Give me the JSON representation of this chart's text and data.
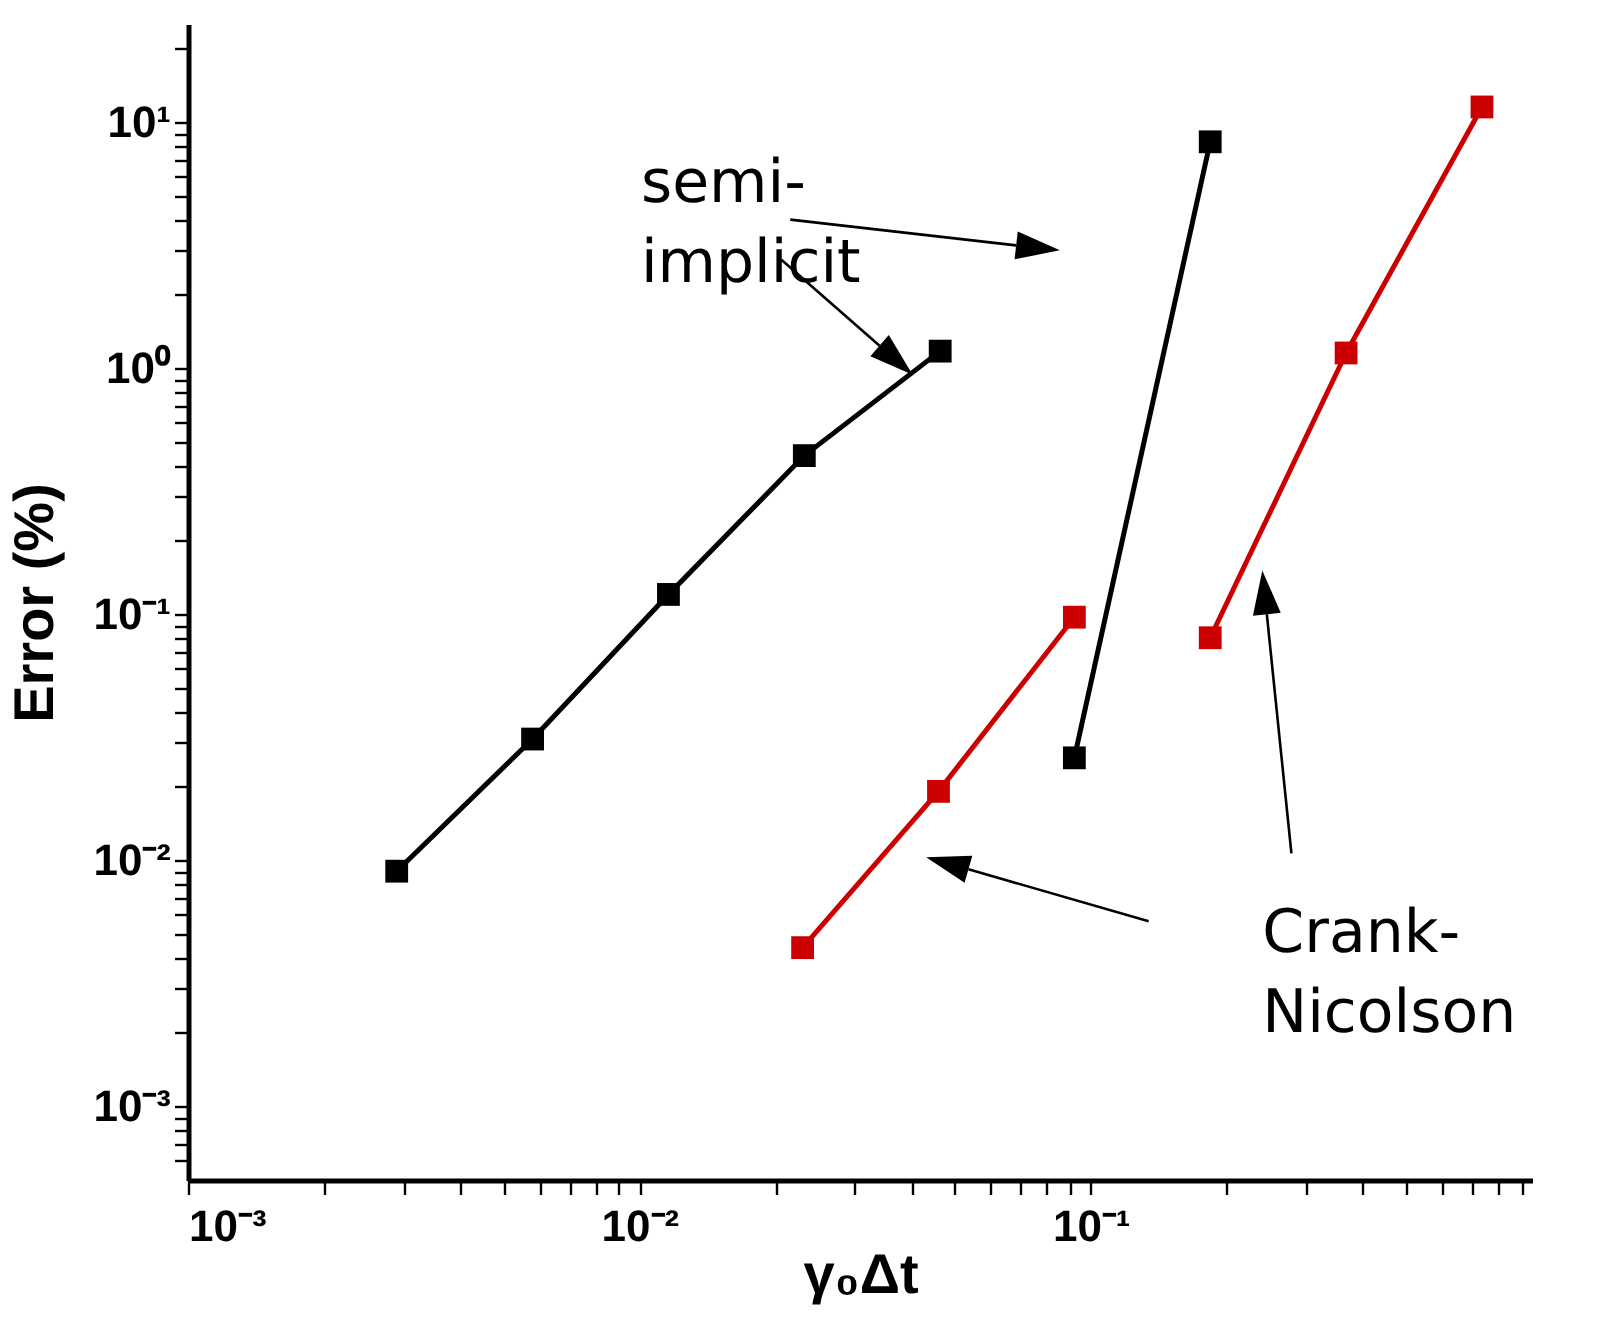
{
  "chart_data": {
    "type": "line",
    "xlabel": "γ₀Δt",
    "ylabel": "Error (%)",
    "log": "xy",
    "grid": false,
    "legend": false,
    "marker": "square",
    "line_style": "solid",
    "xlim": [
      0.001,
      0.95
    ],
    "ylim": [
      0.0005,
      25
    ],
    "xticks": [
      {
        "value": 0.001,
        "label": "10⁻³"
      },
      {
        "value": 0.002,
        "label": null
      },
      {
        "value": 0.003,
        "label": null
      },
      {
        "value": 0.004,
        "label": null
      },
      {
        "value": 0.005,
        "label": null
      },
      {
        "value": 0.006,
        "label": null
      },
      {
        "value": 0.007,
        "label": null
      },
      {
        "value": 0.008,
        "label": null
      },
      {
        "value": 0.009,
        "label": null
      },
      {
        "value": 0.01,
        "label": "10⁻²"
      },
      {
        "value": 0.02,
        "label": null
      },
      {
        "value": 0.03,
        "label": null
      },
      {
        "value": 0.04,
        "label": null
      },
      {
        "value": 0.05,
        "label": null
      },
      {
        "value": 0.06,
        "label": null
      },
      {
        "value": 0.07,
        "label": null
      },
      {
        "value": 0.08,
        "label": null
      },
      {
        "value": 0.09,
        "label": null
      },
      {
        "value": 0.1,
        "label": "10⁻¹"
      },
      {
        "value": 0.2,
        "label": null
      },
      {
        "value": 0.3,
        "label": null
      },
      {
        "value": 0.4,
        "label": null
      },
      {
        "value": 0.5,
        "label": null
      },
      {
        "value": 0.6,
        "label": null
      },
      {
        "value": 0.7,
        "label": null
      },
      {
        "value": 0.8,
        "label": null
      },
      {
        "value": 0.9,
        "label": null
      }
    ],
    "yticks": [
      {
        "value": 0.0006,
        "label": null
      },
      {
        "value": 0.0007,
        "label": null
      },
      {
        "value": 0.0008,
        "label": null
      },
      {
        "value": 0.0009,
        "label": null
      },
      {
        "value": 0.001,
        "label": "10⁻³"
      },
      {
        "value": 0.002,
        "label": null
      },
      {
        "value": 0.003,
        "label": null
      },
      {
        "value": 0.004,
        "label": null
      },
      {
        "value": 0.005,
        "label": null
      },
      {
        "value": 0.006,
        "label": null
      },
      {
        "value": 0.007,
        "label": null
      },
      {
        "value": 0.008,
        "label": null
      },
      {
        "value": 0.009,
        "label": null
      },
      {
        "value": 0.01,
        "label": "10⁻²"
      },
      {
        "value": 0.02,
        "label": null
      },
      {
        "value": 0.03,
        "label": null
      },
      {
        "value": 0.04,
        "label": null
      },
      {
        "value": 0.05,
        "label": null
      },
      {
        "value": 0.06,
        "label": null
      },
      {
        "value": 0.07,
        "label": null
      },
      {
        "value": 0.08,
        "label": null
      },
      {
        "value": 0.09,
        "label": null
      },
      {
        "value": 0.1,
        "label": "10⁻¹"
      },
      {
        "value": 0.2,
        "label": null
      },
      {
        "value": 0.3,
        "label": null
      },
      {
        "value": 0.4,
        "label": null
      },
      {
        "value": 0.5,
        "label": null
      },
      {
        "value": 0.6,
        "label": null
      },
      {
        "value": 0.7,
        "label": null
      },
      {
        "value": 0.8,
        "label": null
      },
      {
        "value": 0.9,
        "label": null
      },
      {
        "value": 1,
        "label": "10⁰"
      },
      {
        "value": 2,
        "label": null
      },
      {
        "value": 3,
        "label": null
      },
      {
        "value": 4,
        "label": null
      },
      {
        "value": 5,
        "label": null
      },
      {
        "value": 6,
        "label": null
      },
      {
        "value": 7,
        "label": null
      },
      {
        "value": 8,
        "label": null
      },
      {
        "value": 9,
        "label": null
      },
      {
        "value": 10,
        "label": "10¹"
      },
      {
        "value": 20,
        "label": null
      }
    ],
    "series": [
      {
        "color": "#000000",
        "x": [
          0.0029,
          0.0058,
          0.0116,
          0.0232,
          0.0464
        ],
        "values": [
          0.009,
          0.031,
          0.12,
          0.44,
          1.17
        ]
      },
      {
        "color": "#000000",
        "x": [
          0.092,
          0.184
        ],
        "values": [
          0.026,
          8.3
        ]
      },
      {
        "color": "#cc0000",
        "x": [
          0.023,
          0.046,
          0.092
        ],
        "values": [
          0.0044,
          0.019,
          0.097
        ]
      },
      {
        "color": "#cc0000",
        "x": [
          0.184,
          0.368,
          0.736
        ],
        "values": [
          0.08,
          1.15,
          11.5
        ]
      }
    ],
    "annotations": [
      "semi-\nimplicit",
      "Crank-\nNicolson"
    ]
  }
}
